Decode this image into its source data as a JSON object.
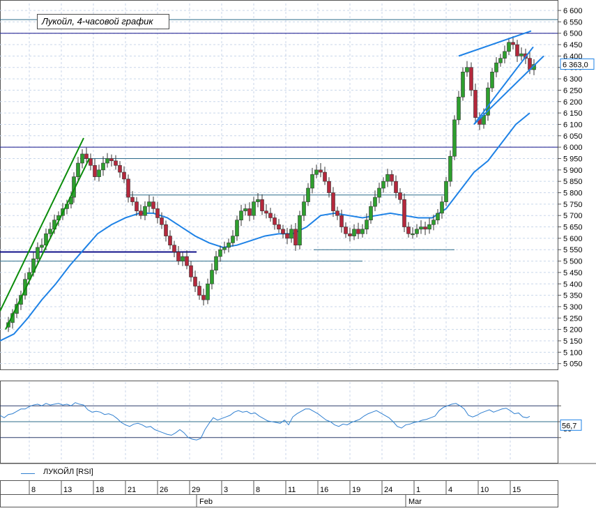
{
  "chart_title": "Лукойл, 4-часовой график",
  "legend": {
    "rsi_label": "ЛУКОЙЛ [RSI]"
  },
  "price_label": "6 363,0",
  "rsi_label": "56,7",
  "rsi_level_label": "50",
  "months": [
    "Feb",
    "Mar"
  ],
  "colors": {
    "up": "#2e9f2e",
    "down": "#b4283c",
    "ma": "#1e82e6",
    "channel": "#0a8c0a",
    "level": "#2b6b8a",
    "support": "#10108a",
    "grid": "#c8d6ea"
  },
  "chart_data": [
    {
      "type": "candlestick",
      "title": "Лукойл, 4-часовой график",
      "ylim": [
        5000,
        6600
      ],
      "y_ticks": [
        "6 600",
        "6 550",
        "6 500",
        "6 450",
        "6 400",
        "6 350",
        "6 300",
        "6 250",
        "6 200",
        "6 150",
        "6 100",
        "6 050",
        "6 000",
        "5 950",
        "5 900",
        "5 850",
        "5 800",
        "5 750",
        "5 700",
        "5 650",
        "5 600",
        "5 550",
        "5 500",
        "5 450",
        "5 400",
        "5 350",
        "5 300",
        "5 250",
        "5 200",
        "5 150",
        "5 100",
        "5 050"
      ],
      "x_ticks": [
        "8",
        "13",
        "18",
        "21",
        "26",
        "29",
        "3",
        "8",
        "11",
        "16",
        "19",
        "24",
        "1",
        "4",
        "10",
        "15"
      ],
      "grid": true,
      "last_price": 6363.0,
      "close_path": [
        [
          0,
          5210
        ],
        [
          6,
          5230
        ],
        [
          12,
          5270
        ],
        [
          18,
          5310
        ],
        [
          24,
          5350
        ],
        [
          30,
          5420
        ],
        [
          36,
          5450
        ],
        [
          42,
          5510
        ],
        [
          48,
          5560
        ],
        [
          54,
          5570
        ],
        [
          60,
          5620
        ],
        [
          66,
          5640
        ],
        [
          72,
          5680
        ],
        [
          78,
          5700
        ],
        [
          84,
          5730
        ],
        [
          90,
          5750
        ],
        [
          96,
          5780
        ],
        [
          100,
          5870
        ],
        [
          106,
          5930
        ],
        [
          112,
          5970
        ],
        [
          118,
          5950
        ],
        [
          124,
          5920
        ],
        [
          130,
          5870
        ],
        [
          136,
          5900
        ],
        [
          142,
          5930
        ],
        [
          148,
          5950
        ],
        [
          154,
          5940
        ],
        [
          160,
          5920
        ],
        [
          166,
          5890
        ],
        [
          172,
          5860
        ],
        [
          178,
          5780
        ],
        [
          184,
          5760
        ],
        [
          190,
          5720
        ],
        [
          196,
          5700
        ],
        [
          202,
          5740
        ],
        [
          208,
          5760
        ],
        [
          214,
          5730
        ],
        [
          220,
          5690
        ],
        [
          226,
          5660
        ],
        [
          232,
          5610
        ],
        [
          238,
          5570
        ],
        [
          244,
          5540
        ],
        [
          250,
          5500
        ],
        [
          256,
          5520
        ],
        [
          262,
          5480
        ],
        [
          268,
          5430
        ],
        [
          274,
          5390
        ],
        [
          280,
          5350
        ],
        [
          286,
          5330
        ],
        [
          292,
          5400
        ],
        [
          298,
          5460
        ],
        [
          304,
          5520
        ],
        [
          310,
          5550
        ],
        [
          316,
          5560
        ],
        [
          322,
          5580
        ],
        [
          328,
          5610
        ],
        [
          334,
          5680
        ],
        [
          340,
          5720
        ],
        [
          346,
          5730
        ],
        [
          352,
          5700
        ],
        [
          358,
          5760
        ],
        [
          364,
          5770
        ],
        [
          370,
          5720
        ],
        [
          376,
          5710
        ],
        [
          382,
          5690
        ],
        [
          388,
          5660
        ],
        [
          394,
          5640
        ],
        [
          400,
          5620
        ],
        [
          406,
          5600
        ],
        [
          412,
          5640
        ],
        [
          418,
          5570
        ],
        [
          424,
          5700
        ],
        [
          430,
          5760
        ],
        [
          436,
          5820
        ],
        [
          442,
          5880
        ],
        [
          448,
          5900
        ],
        [
          454,
          5890
        ],
        [
          460,
          5850
        ],
        [
          466,
          5800
        ],
        [
          472,
          5720
        ],
        [
          478,
          5700
        ],
        [
          484,
          5650
        ],
        [
          490,
          5620
        ],
        [
          496,
          5610
        ],
        [
          502,
          5640
        ],
        [
          508,
          5620
        ],
        [
          514,
          5640
        ],
        [
          520,
          5680
        ],
        [
          526,
          5740
        ],
        [
          532,
          5780
        ],
        [
          538,
          5820
        ],
        [
          544,
          5850
        ],
        [
          550,
          5880
        ],
        [
          556,
          5850
        ],
        [
          562,
          5800
        ],
        [
          568,
          5770
        ],
        [
          574,
          5650
        ],
        [
          580,
          5620
        ],
        [
          586,
          5620
        ],
        [
          592,
          5640
        ],
        [
          598,
          5650
        ],
        [
          604,
          5640
        ],
        [
          610,
          5660
        ],
        [
          616,
          5680
        ],
        [
          622,
          5710
        ],
        [
          628,
          5760
        ],
        [
          634,
          5850
        ],
        [
          640,
          5960
        ],
        [
          646,
          6120
        ],
        [
          652,
          6220
        ],
        [
          658,
          6330
        ],
        [
          664,
          6350
        ],
        [
          670,
          6250
        ],
        [
          676,
          6130
        ],
        [
          682,
          6100
        ],
        [
          688,
          6140
        ],
        [
          694,
          6260
        ],
        [
          700,
          6330
        ],
        [
          706,
          6370
        ],
        [
          712,
          6390
        ],
        [
          718,
          6420
        ],
        [
          724,
          6460
        ],
        [
          730,
          6450
        ],
        [
          736,
          6400
        ],
        [
          742,
          6410
        ],
        [
          748,
          6390
        ],
        [
          754,
          6340
        ],
        [
          760,
          6363
        ]
      ],
      "ma_path": [
        [
          0,
          5150
        ],
        [
          20,
          5180
        ],
        [
          40,
          5250
        ],
        [
          60,
          5330
        ],
        [
          80,
          5400
        ],
        [
          100,
          5480
        ],
        [
          120,
          5550
        ],
        [
          140,
          5620
        ],
        [
          160,
          5660
        ],
        [
          180,
          5690
        ],
        [
          200,
          5710
        ],
        [
          220,
          5710
        ],
        [
          240,
          5690
        ],
        [
          260,
          5650
        ],
        [
          280,
          5610
        ],
        [
          300,
          5580
        ],
        [
          320,
          5560
        ],
        [
          340,
          5570
        ],
        [
          360,
          5590
        ],
        [
          380,
          5610
        ],
        [
          400,
          5620
        ],
        [
          420,
          5620
        ],
        [
          440,
          5650
        ],
        [
          460,
          5700
        ],
        [
          480,
          5710
        ],
        [
          500,
          5700
        ],
        [
          520,
          5690
        ],
        [
          540,
          5700
        ],
        [
          560,
          5710
        ],
        [
          580,
          5700
        ],
        [
          600,
          5690
        ],
        [
          620,
          5690
        ],
        [
          640,
          5730
        ],
        [
          660,
          5810
        ],
        [
          680,
          5890
        ],
        [
          700,
          5940
        ],
        [
          720,
          6020
        ],
        [
          740,
          6100
        ],
        [
          760,
          6150
        ]
      ],
      "levels": [
        {
          "price": 6560,
          "x": [
            0,
            800
          ],
          "color": "level"
        },
        {
          "price": 6500,
          "x": [
            0,
            800
          ],
          "color": "support"
        },
        {
          "price": 6000,
          "x": [
            0,
            800
          ],
          "color": "support"
        },
        {
          "price": 5950,
          "x": [
            115,
            640
          ],
          "color": "level"
        },
        {
          "price": 5790,
          "x": [
            180,
            640
          ],
          "color": "level"
        },
        {
          "price": 5540,
          "x": [
            0,
            282
          ],
          "color": "support"
        },
        {
          "price": 5500,
          "x": [
            0,
            520
          ],
          "color": "level"
        },
        {
          "price": 5550,
          "x": [
            450,
            652
          ],
          "color": "level"
        }
      ],
      "trendlines": [
        {
          "from": [
            0,
            5280
          ],
          "to": [
            120,
            6040
          ],
          "color": "channel"
        },
        {
          "from": [
            8,
            5200
          ],
          "to": [
            128,
            5950
          ],
          "color": "channel"
        },
        {
          "from": [
            658,
            6400
          ],
          "to": [
            762,
            6510
          ],
          "color": "ma"
        },
        {
          "from": [
            680,
            6100
          ],
          "to": [
            780,
            6400
          ],
          "color": "ma"
        },
        {
          "from": [
            680,
            6100
          ],
          "to": [
            765,
            6440
          ],
          "color": "ma"
        }
      ]
    },
    {
      "type": "line",
      "name": "ЛУКОЙЛ [RSI]",
      "ylim": [
        0,
        100
      ],
      "levels": [
        70,
        50,
        30
      ],
      "last_value": 56.7,
      "values": [
        [
          0,
          58
        ],
        [
          6,
          55
        ],
        [
          12,
          59
        ],
        [
          18,
          60
        ],
        [
          24,
          63
        ],
        [
          30,
          66
        ],
        [
          36,
          66
        ],
        [
          42,
          69
        ],
        [
          48,
          71
        ],
        [
          54,
          72
        ],
        [
          60,
          70
        ],
        [
          66,
          73
        ],
        [
          72,
          71
        ],
        [
          78,
          72
        ],
        [
          84,
          73
        ],
        [
          90,
          71
        ],
        [
          96,
          72
        ],
        [
          102,
          70
        ],
        [
          108,
          74
        ],
        [
          114,
          72
        ],
        [
          120,
          71
        ],
        [
          126,
          65
        ],
        [
          132,
          62
        ],
        [
          138,
          63
        ],
        [
          144,
          62
        ],
        [
          150,
          59
        ],
        [
          156,
          60
        ],
        [
          162,
          58
        ],
        [
          168,
          54
        ],
        [
          174,
          49
        ],
        [
          180,
          46
        ],
        [
          186,
          44
        ],
        [
          192,
          47
        ],
        [
          198,
          48
        ],
        [
          204,
          46
        ],
        [
          210,
          43
        ],
        [
          216,
          44
        ],
        [
          222,
          40
        ],
        [
          228,
          38
        ],
        [
          234,
          36
        ],
        [
          240,
          34
        ],
        [
          246,
          33
        ],
        [
          252,
          36
        ],
        [
          258,
          40
        ],
        [
          264,
          36
        ],
        [
          270,
          30
        ],
        [
          276,
          28
        ],
        [
          282,
          27
        ],
        [
          288,
          29
        ],
        [
          294,
          40
        ],
        [
          300,
          48
        ],
        [
          306,
          55
        ],
        [
          312,
          52
        ],
        [
          318,
          54
        ],
        [
          324,
          56
        ],
        [
          330,
          58
        ],
        [
          336,
          62
        ],
        [
          342,
          64
        ],
        [
          348,
          62
        ],
        [
          354,
          63
        ],
        [
          360,
          60
        ],
        [
          366,
          61
        ],
        [
          372,
          57
        ],
        [
          378,
          54
        ],
        [
          384,
          51
        ],
        [
          390,
          50
        ],
        [
          396,
          49
        ],
        [
          402,
          48
        ],
        [
          408,
          52
        ],
        [
          414,
          46
        ],
        [
          420,
          56
        ],
        [
          426,
          60
        ],
        [
          432,
          63
        ],
        [
          438,
          66
        ],
        [
          444,
          66
        ],
        [
          450,
          63
        ],
        [
          456,
          60
        ],
        [
          462,
          56
        ],
        [
          468,
          52
        ],
        [
          474,
          50
        ],
        [
          480,
          46
        ],
        [
          486,
          44
        ],
        [
          492,
          47
        ],
        [
          498,
          46
        ],
        [
          504,
          49
        ],
        [
          510,
          51
        ],
        [
          516,
          53
        ],
        [
          522,
          57
        ],
        [
          528,
          60
        ],
        [
          534,
          62
        ],
        [
          540,
          64
        ],
        [
          546,
          61
        ],
        [
          552,
          58
        ],
        [
          558,
          55
        ],
        [
          564,
          50
        ],
        [
          570,
          44
        ],
        [
          576,
          42
        ],
        [
          582,
          46
        ],
        [
          588,
          47
        ],
        [
          594,
          49
        ],
        [
          600,
          50
        ],
        [
          606,
          52
        ],
        [
          612,
          53
        ],
        [
          618,
          55
        ],
        [
          624,
          57
        ],
        [
          630,
          64
        ],
        [
          636,
          68
        ],
        [
          642,
          70
        ],
        [
          648,
          72
        ],
        [
          654,
          73
        ],
        [
          660,
          70
        ],
        [
          666,
          66
        ],
        [
          672,
          58
        ],
        [
          678,
          56
        ],
        [
          684,
          58
        ],
        [
          690,
          61
        ],
        [
          696,
          63
        ],
        [
          702,
          65
        ],
        [
          708,
          62
        ],
        [
          714,
          64
        ],
        [
          720,
          66
        ],
        [
          726,
          67
        ],
        [
          732,
          64
        ],
        [
          738,
          60
        ],
        [
          744,
          61
        ],
        [
          750,
          56
        ],
        [
          756,
          55
        ],
        [
          760,
          56.7
        ]
      ]
    }
  ]
}
